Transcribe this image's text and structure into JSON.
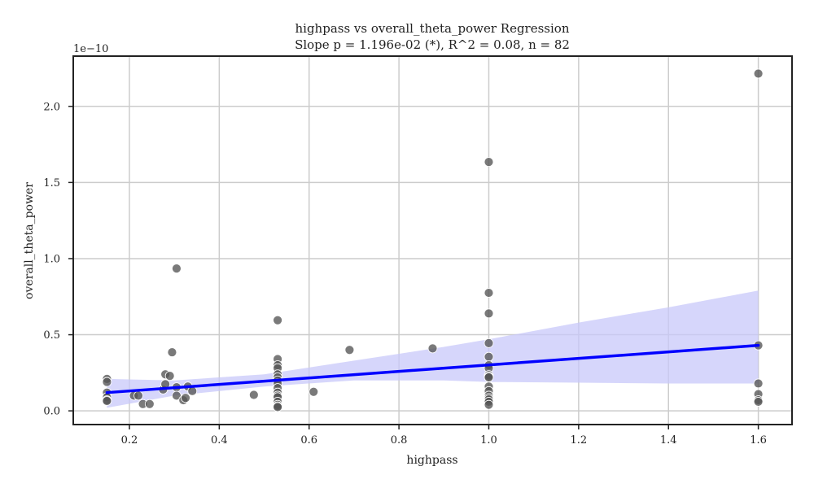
{
  "chart_data": {
    "type": "scatter",
    "title": "highpass vs overall_theta_power Regression",
    "subtitle": "Slope p = 1.196e-02 (*), R^2 = 0.08, n = 82",
    "xlabel": "highpass",
    "ylabel": "overall_theta_power",
    "y_offset_label": "1e−10",
    "xlim": [
      0.075,
      1.675
    ],
    "ylim": [
      -0.09,
      2.33
    ],
    "x_ticks": [
      0.2,
      0.4,
      0.6,
      0.8,
      1.0,
      1.2,
      1.4,
      1.6
    ],
    "x_tick_labels": [
      "0.2",
      "0.4",
      "0.6",
      "0.8",
      "1.0",
      "1.2",
      "1.4",
      "1.6"
    ],
    "y_ticks": [
      0.0,
      0.5,
      1.0,
      1.5,
      2.0
    ],
    "y_tick_labels": [
      "0.0",
      "0.5",
      "1.0",
      "1.5",
      "2.0"
    ],
    "grid": true,
    "colors": {
      "points": "#555555",
      "regression_line": "#0000ff",
      "confidence_band": "#c8c8fa",
      "grid": "#cccccc",
      "axes": "#222222"
    },
    "points": [
      {
        "x": 0.15,
        "y": 0.21
      },
      {
        "x": 0.15,
        "y": 0.19
      },
      {
        "x": 0.15,
        "y": 0.12
      },
      {
        "x": 0.15,
        "y": 0.09
      },
      {
        "x": 0.15,
        "y": 0.07
      },
      {
        "x": 0.15,
        "y": 0.065
      },
      {
        "x": 0.21,
        "y": 0.1
      },
      {
        "x": 0.22,
        "y": 0.1
      },
      {
        "x": 0.23,
        "y": 0.045
      },
      {
        "x": 0.245,
        "y": 0.045
      },
      {
        "x": 0.275,
        "y": 0.14
      },
      {
        "x": 0.28,
        "y": 0.175
      },
      {
        "x": 0.28,
        "y": 0.24
      },
      {
        "x": 0.29,
        "y": 0.23
      },
      {
        "x": 0.295,
        "y": 0.385
      },
      {
        "x": 0.305,
        "y": 0.155
      },
      {
        "x": 0.305,
        "y": 0.1
      },
      {
        "x": 0.305,
        "y": 0.935
      },
      {
        "x": 0.32,
        "y": 0.07
      },
      {
        "x": 0.325,
        "y": 0.085
      },
      {
        "x": 0.33,
        "y": 0.16
      },
      {
        "x": 0.34,
        "y": 0.13
      },
      {
        "x": 0.477,
        "y": 0.105
      },
      {
        "x": 0.53,
        "y": 0.595
      },
      {
        "x": 0.53,
        "y": 0.34
      },
      {
        "x": 0.53,
        "y": 0.3
      },
      {
        "x": 0.53,
        "y": 0.28
      },
      {
        "x": 0.53,
        "y": 0.24
      },
      {
        "x": 0.53,
        "y": 0.22
      },
      {
        "x": 0.53,
        "y": 0.2
      },
      {
        "x": 0.53,
        "y": 0.18
      },
      {
        "x": 0.53,
        "y": 0.15
      },
      {
        "x": 0.53,
        "y": 0.12
      },
      {
        "x": 0.53,
        "y": 0.1
      },
      {
        "x": 0.53,
        "y": 0.09
      },
      {
        "x": 0.53,
        "y": 0.06
      },
      {
        "x": 0.53,
        "y": 0.04
      },
      {
        "x": 0.53,
        "y": 0.03
      },
      {
        "x": 0.53,
        "y": 0.025
      },
      {
        "x": 0.61,
        "y": 0.125
      },
      {
        "x": 0.69,
        "y": 0.4
      },
      {
        "x": 0.875,
        "y": 0.41
      },
      {
        "x": 1.0,
        "y": 1.635
      },
      {
        "x": 1.0,
        "y": 0.775
      },
      {
        "x": 1.0,
        "y": 0.64
      },
      {
        "x": 1.0,
        "y": 0.445
      },
      {
        "x": 1.0,
        "y": 0.355
      },
      {
        "x": 1.0,
        "y": 0.3
      },
      {
        "x": 1.0,
        "y": 0.28
      },
      {
        "x": 1.0,
        "y": 0.235
      },
      {
        "x": 1.0,
        "y": 0.225
      },
      {
        "x": 1.0,
        "y": 0.22
      },
      {
        "x": 1.0,
        "y": 0.16
      },
      {
        "x": 1.0,
        "y": 0.13
      },
      {
        "x": 1.0,
        "y": 0.1
      },
      {
        "x": 1.0,
        "y": 0.085
      },
      {
        "x": 1.0,
        "y": 0.075
      },
      {
        "x": 1.0,
        "y": 0.06
      },
      {
        "x": 1.0,
        "y": 0.04
      },
      {
        "x": 1.6,
        "y": 2.215
      },
      {
        "x": 1.6,
        "y": 0.43
      },
      {
        "x": 1.6,
        "y": 0.18
      },
      {
        "x": 1.6,
        "y": 0.11
      },
      {
        "x": 1.6,
        "y": 0.07
      },
      {
        "x": 1.6,
        "y": 0.06
      }
    ],
    "regression_line": {
      "x": [
        0.15,
        1.6
      ],
      "y": [
        0.12,
        0.43
      ]
    },
    "confidence_band": {
      "x": [
        0.15,
        0.3,
        0.5,
        0.7,
        0.9,
        1.0,
        1.2,
        1.4,
        1.6
      ],
      "upper": [
        0.21,
        0.2,
        0.24,
        0.33,
        0.42,
        0.47,
        0.58,
        0.68,
        0.79
      ],
      "lower": [
        0.02,
        0.1,
        0.16,
        0.2,
        0.2,
        0.19,
        0.185,
        0.18,
        0.18
      ]
    }
  }
}
